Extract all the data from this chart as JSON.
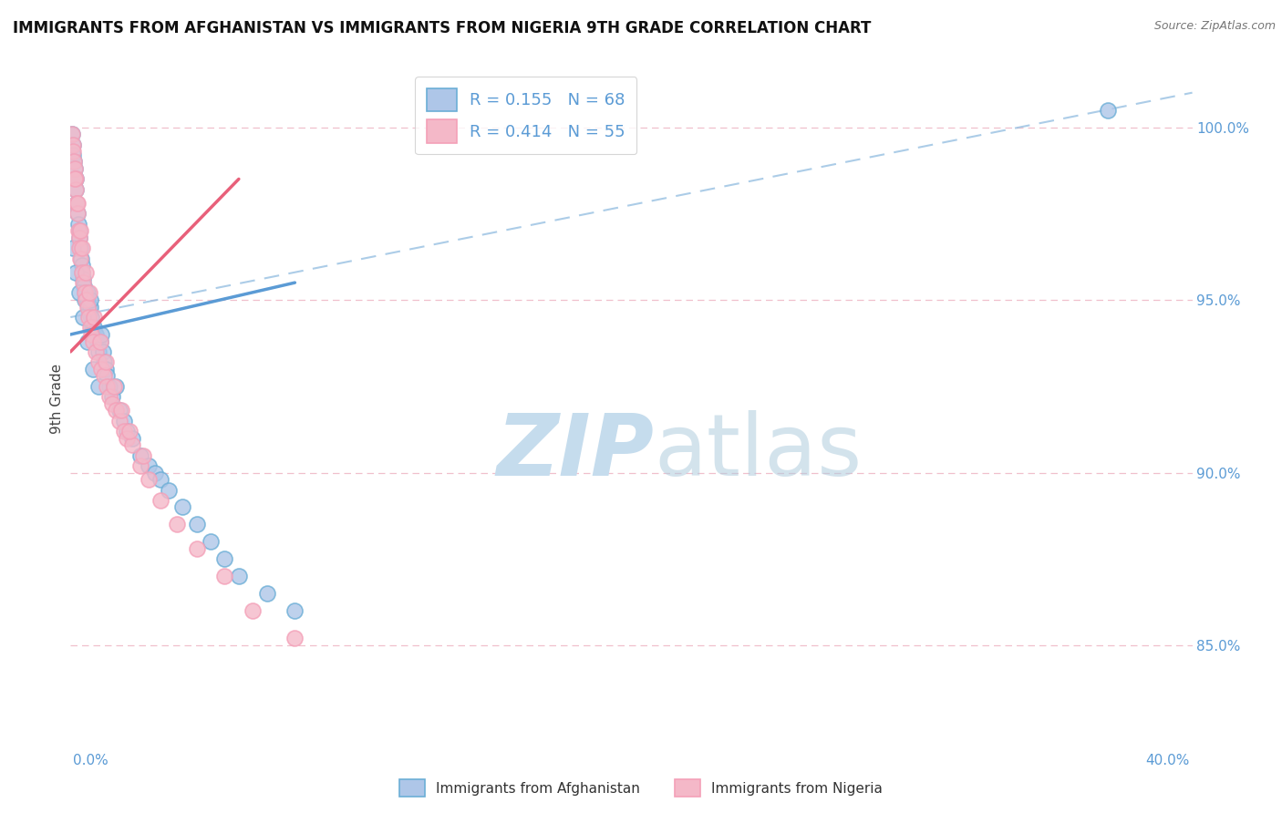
{
  "title": "IMMIGRANTS FROM AFGHANISTAN VS IMMIGRANTS FROM NIGERIA 9TH GRADE CORRELATION CHART",
  "source": "Source: ZipAtlas.com",
  "ylabel": "9th Grade",
  "y_ticks": [
    85.0,
    90.0,
    95.0,
    100.0
  ],
  "y_tick_labels": [
    "85.0%",
    "90.0%",
    "95.0%",
    "100.0%"
  ],
  "x_range": [
    0.0,
    40.0
  ],
  "y_range": [
    82.5,
    101.8
  ],
  "legend_r1": "R = 0.155",
  "legend_n1": "N = 68",
  "legend_r2": "R = 0.414",
  "legend_n2": "N = 55",
  "afghanistan_color": "#aec6e8",
  "nigeria_color": "#f4b8c8",
  "afghanistan_edge": "#6baed6",
  "nigeria_edge": "#f4a0b8",
  "trendline_afghanistan_color": "#5b9bd5",
  "trendline_nigeria_color": "#e8607a",
  "dashed_line_color": "#90bce0",
  "axis_color": "#5b9bd5",
  "grid_color": "#f0c0cc",
  "af_x": [
    0.05,
    0.08,
    0.1,
    0.12,
    0.15,
    0.18,
    0.2,
    0.22,
    0.25,
    0.28,
    0.3,
    0.32,
    0.35,
    0.38,
    0.4,
    0.42,
    0.45,
    0.48,
    0.5,
    0.52,
    0.55,
    0.58,
    0.6,
    0.62,
    0.65,
    0.68,
    0.7,
    0.72,
    0.75,
    0.78,
    0.8,
    0.85,
    0.9,
    0.95,
    1.0,
    1.05,
    1.1,
    1.15,
    1.2,
    1.25,
    1.3,
    1.4,
    1.5,
    1.6,
    1.75,
    1.9,
    2.0,
    2.2,
    2.5,
    2.8,
    3.0,
    3.2,
    3.5,
    4.0,
    4.5,
    5.0,
    5.5,
    6.0,
    7.0,
    8.0,
    0.1,
    0.2,
    0.3,
    0.45,
    0.6,
    0.8,
    1.0,
    37.0
  ],
  "af_y": [
    99.8,
    99.5,
    99.2,
    99.0,
    98.8,
    98.5,
    98.2,
    97.8,
    97.5,
    97.2,
    97.0,
    96.8,
    96.5,
    96.2,
    96.0,
    95.8,
    95.6,
    95.4,
    95.2,
    95.0,
    95.2,
    95.0,
    95.2,
    95.0,
    94.8,
    94.6,
    94.8,
    95.0,
    94.5,
    94.2,
    94.0,
    94.2,
    94.0,
    93.8,
    93.5,
    93.8,
    94.0,
    93.5,
    93.2,
    93.0,
    92.8,
    92.5,
    92.2,
    92.5,
    91.8,
    91.5,
    91.2,
    91.0,
    90.5,
    90.2,
    90.0,
    89.8,
    89.5,
    89.0,
    88.5,
    88.0,
    87.5,
    87.0,
    86.5,
    86.0,
    96.5,
    95.8,
    95.2,
    94.5,
    93.8,
    93.0,
    92.5,
    100.5
  ],
  "ng_x": [
    0.05,
    0.08,
    0.1,
    0.12,
    0.15,
    0.18,
    0.2,
    0.22,
    0.25,
    0.28,
    0.3,
    0.32,
    0.35,
    0.4,
    0.45,
    0.5,
    0.55,
    0.6,
    0.65,
    0.7,
    0.75,
    0.8,
    0.9,
    1.0,
    1.1,
    1.2,
    1.3,
    1.4,
    1.5,
    1.6,
    1.75,
    1.9,
    2.0,
    2.2,
    2.5,
    2.8,
    3.2,
    3.8,
    4.5,
    5.5,
    6.5,
    8.0,
    0.15,
    0.25,
    0.35,
    0.42,
    0.55,
    0.68,
    0.82,
    1.05,
    1.25,
    1.55,
    1.8,
    2.1,
    2.6
  ],
  "ng_y": [
    99.8,
    99.5,
    99.3,
    99.0,
    98.8,
    98.5,
    98.2,
    97.8,
    97.5,
    97.0,
    96.8,
    96.5,
    96.2,
    95.8,
    95.5,
    95.2,
    95.0,
    94.8,
    94.5,
    94.2,
    94.0,
    93.8,
    93.5,
    93.2,
    93.0,
    92.8,
    92.5,
    92.2,
    92.0,
    91.8,
    91.5,
    91.2,
    91.0,
    90.8,
    90.2,
    89.8,
    89.2,
    88.5,
    87.8,
    87.0,
    86.0,
    85.2,
    98.5,
    97.8,
    97.0,
    96.5,
    95.8,
    95.2,
    94.5,
    93.8,
    93.2,
    92.5,
    91.8,
    91.2,
    90.5
  ],
  "af_trend_x0": 0.0,
  "af_trend_y0": 94.0,
  "af_trend_x1": 8.0,
  "af_trend_y1": 95.5,
  "ng_trend_x0": 0.0,
  "ng_trend_y0": 93.5,
  "ng_trend_x1": 6.0,
  "ng_trend_y1": 98.5,
  "dash_x0": 0.0,
  "dash_y0": 94.5,
  "dash_x1": 40.0,
  "dash_y1": 101.0
}
